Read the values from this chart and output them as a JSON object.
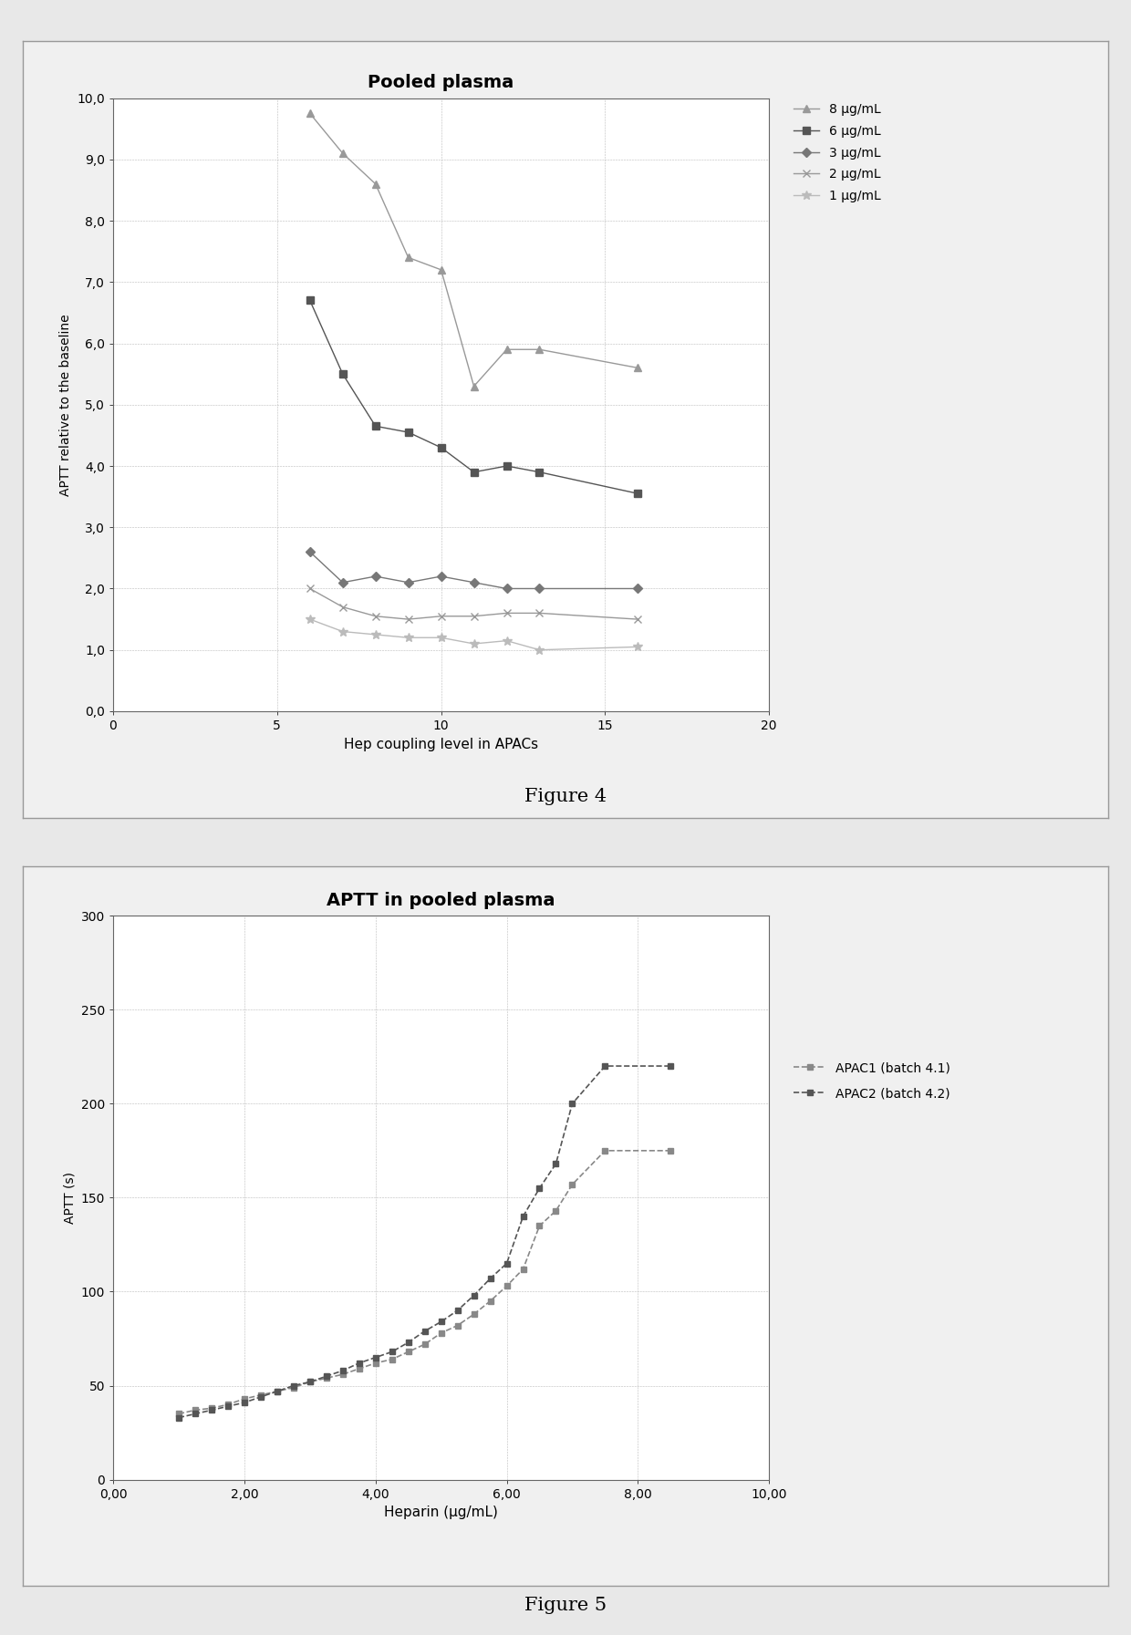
{
  "fig1": {
    "title": "Pooled plasma",
    "xlabel": "Hep coupling level in APACs",
    "ylabel": "APTT relative to the baseline",
    "xlim": [
      0,
      20
    ],
    "ylim": [
      0,
      10
    ],
    "xticks": [
      0,
      5,
      10,
      15,
      20
    ],
    "xtick_labels": [
      "0",
      "5",
      "10",
      "15",
      "20"
    ],
    "yticks": [
      0.0,
      1.0,
      2.0,
      3.0,
      4.0,
      5.0,
      6.0,
      7.0,
      8.0,
      9.0,
      10.0
    ],
    "ytick_labels": [
      "0,0",
      "1,0",
      "2,0",
      "3,0",
      "4,0",
      "5,0",
      "6,0",
      "7,0",
      "8,0",
      "9,0",
      "10,0"
    ],
    "series": [
      {
        "label": "8 μg/mL",
        "x": [
          6,
          7,
          8,
          9,
          10,
          11,
          12,
          13,
          16
        ],
        "y": [
          9.75,
          9.1,
          8.6,
          7.4,
          7.2,
          5.3,
          5.9,
          5.9,
          5.6
        ],
        "color": "#999999",
        "marker": "^",
        "markersize": 6,
        "linestyle": "-",
        "linewidth": 1.0
      },
      {
        "label": "6 μg/mL",
        "x": [
          6,
          7,
          8,
          9,
          10,
          11,
          12,
          13,
          16
        ],
        "y": [
          6.7,
          5.5,
          4.65,
          4.55,
          4.3,
          3.9,
          4.0,
          3.9,
          3.55
        ],
        "color": "#555555",
        "marker": "s",
        "markersize": 6,
        "linestyle": "-",
        "linewidth": 1.0
      },
      {
        "label": "3 μg/mL",
        "x": [
          6,
          7,
          8,
          9,
          10,
          11,
          12,
          13,
          16
        ],
        "y": [
          2.6,
          2.1,
          2.2,
          2.1,
          2.2,
          2.1,
          2.0,
          2.0,
          2.0
        ],
        "color": "#777777",
        "marker": "D",
        "markersize": 5,
        "linestyle": "-",
        "linewidth": 1.0
      },
      {
        "label": "2 μg/mL",
        "x": [
          6,
          7,
          8,
          9,
          10,
          11,
          12,
          13,
          16
        ],
        "y": [
          2.0,
          1.7,
          1.55,
          1.5,
          1.55,
          1.55,
          1.6,
          1.6,
          1.5
        ],
        "color": "#999999",
        "marker": "x",
        "markersize": 6,
        "linestyle": "-",
        "linewidth": 1.0
      },
      {
        "label": "1 μg/mL",
        "x": [
          6,
          7,
          8,
          9,
          10,
          11,
          12,
          13,
          16
        ],
        "y": [
          1.5,
          1.3,
          1.25,
          1.2,
          1.2,
          1.1,
          1.15,
          1.0,
          1.05
        ],
        "color": "#bbbbbb",
        "marker": "*",
        "markersize": 7,
        "linestyle": "-",
        "linewidth": 1.0
      }
    ]
  },
  "fig2": {
    "title": "APTT in pooled plasma",
    "xlabel": "Heparin (μg/mL)",
    "ylabel": "APTT (s)",
    "xlim": [
      0,
      10
    ],
    "ylim": [
      0,
      300
    ],
    "xticks": [
      0.0,
      2.0,
      4.0,
      6.0,
      8.0,
      10.0
    ],
    "xtick_labels": [
      "0,00",
      "2,00",
      "4,00",
      "6,00",
      "8,00",
      "10,00"
    ],
    "yticks": [
      0,
      50,
      100,
      150,
      200,
      250,
      300
    ],
    "ytick_labels": [
      "0",
      "50",
      "100",
      "150",
      "200",
      "250",
      "300"
    ],
    "series": [
      {
        "label": "APAC1 (batch 4.1)",
        "x": [
          1.0,
          1.25,
          1.5,
          1.75,
          2.0,
          2.25,
          2.5,
          2.75,
          3.0,
          3.25,
          3.5,
          3.75,
          4.0,
          4.25,
          4.5,
          4.75,
          5.0,
          5.25,
          5.5,
          5.75,
          6.0,
          6.25,
          6.5,
          6.75,
          7.0,
          7.5,
          8.5
        ],
        "y": [
          35,
          37,
          38,
          40,
          43,
          45,
          47,
          49,
          52,
          54,
          56,
          59,
          62,
          64,
          68,
          72,
          78,
          82,
          88,
          95,
          103,
          112,
          135,
          143,
          157,
          175,
          175
        ],
        "color": "#888888",
        "marker": "s",
        "markersize": 5,
        "linestyle": "--",
        "linewidth": 1.2
      },
      {
        "label": "APAC2 (batch 4.2)",
        "x": [
          1.0,
          1.25,
          1.5,
          1.75,
          2.0,
          2.25,
          2.5,
          2.75,
          3.0,
          3.25,
          3.5,
          3.75,
          4.0,
          4.25,
          4.5,
          4.75,
          5.0,
          5.25,
          5.5,
          5.75,
          6.0,
          6.25,
          6.5,
          6.75,
          7.0,
          7.5,
          8.5
        ],
        "y": [
          33,
          35,
          37,
          39,
          41,
          44,
          47,
          50,
          52,
          55,
          58,
          62,
          65,
          68,
          73,
          79,
          84,
          90,
          98,
          107,
          115,
          140,
          155,
          168,
          200,
          220,
          220
        ],
        "color": "#555555",
        "marker": "s",
        "markersize": 5,
        "linestyle": "--",
        "linewidth": 1.2
      }
    ]
  },
  "figure4_label": "Figure 4",
  "figure5_label": "Figure 5",
  "outer_bg": "#e8e8e8",
  "panel_bg": "#f0f0f0",
  "plot_bg": "#ffffff"
}
